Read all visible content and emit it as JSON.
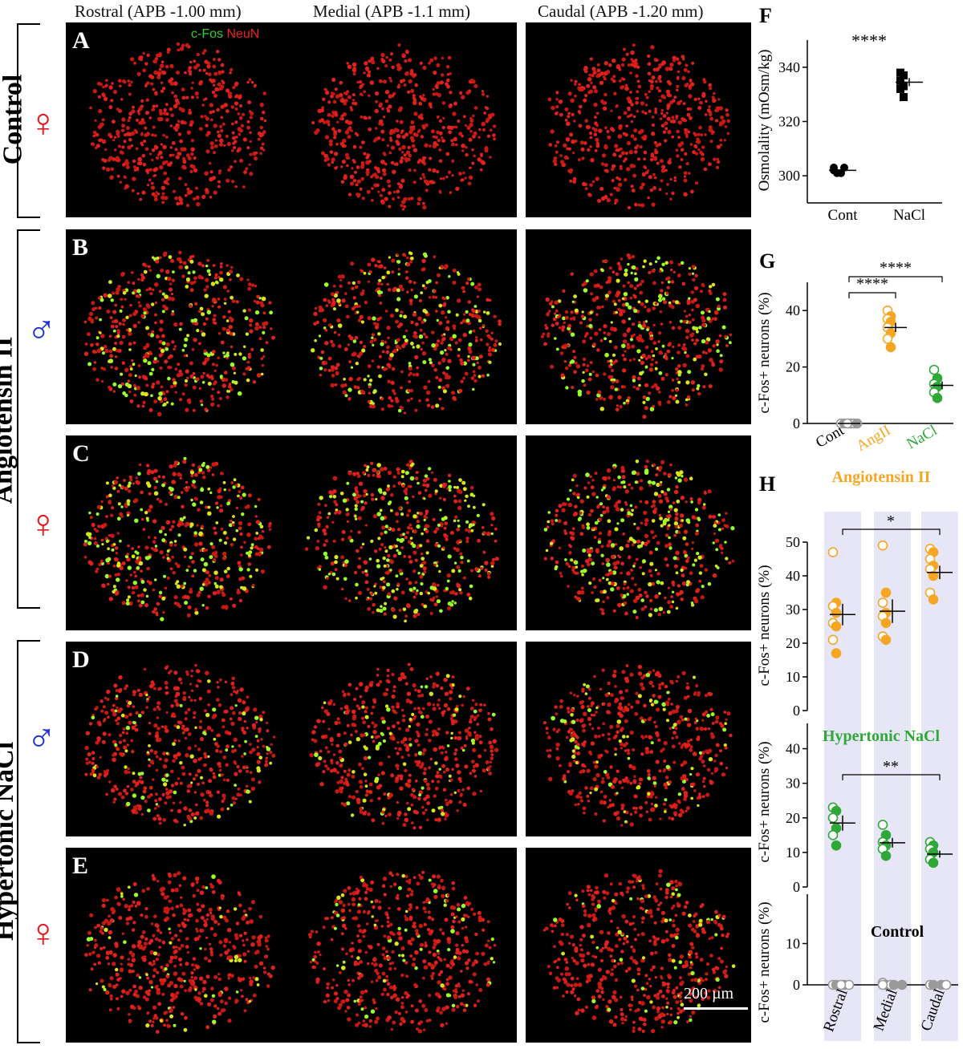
{
  "columns": [
    "Rostral (APB -1.00 mm)",
    "Medial (APB -1.1 mm)",
    "Caudal (APB -1.20 mm)"
  ],
  "stain": {
    "green": "c-Fos",
    "red": "NeuN"
  },
  "rows": [
    {
      "group": "Control",
      "sex": "♀",
      "sex_type": "female",
      "letter": "A",
      "green_fraction": 0.0
    },
    {
      "group": "Angiotensin II",
      "sex": "♂",
      "sex_type": "male",
      "letter": "B",
      "green_fraction": 0.28
    },
    {
      "group": "Angiotensin II",
      "sex": "♀",
      "sex_type": "female",
      "letter": "C",
      "green_fraction": 0.35
    },
    {
      "group": "Hypertonic NaCl",
      "sex": "♂",
      "sex_type": "male",
      "letter": "D",
      "green_fraction": 0.15
    },
    {
      "group": "Hypertonic NaCl",
      "sex": "♀",
      "sex_type": "female",
      "letter": "E",
      "green_fraction": 0.12
    }
  ],
  "group_labels": {
    "control": "Control",
    "angII": "Angiotensin II",
    "nacl": "Hypertonic NaCl"
  },
  "scale_bar": "200 µm",
  "colors": {
    "angII": "#f5a623",
    "nacl": "#2ea836",
    "control": "#9a9a9a",
    "shade": "#e6e6f7",
    "female": "#e8141c",
    "male": "#1a2fd6"
  },
  "chart_data": [
    {
      "id": "F",
      "type": "scatter",
      "ylabel": "Osmolality (mOsm/kg)",
      "ylim": [
        290,
        350
      ],
      "yticks": [
        300,
        320,
        340
      ],
      "categories": [
        "Cont",
        "NaCl"
      ],
      "series": [
        {
          "category": "Cont",
          "marker": "circle",
          "color": "#000000",
          "values": [
            303,
            303,
            302,
            301,
            301
          ],
          "mean": 302,
          "sem": 0.6
        },
        {
          "category": "NaCl",
          "marker": "square",
          "color": "#000000",
          "values": [
            338,
            337,
            335,
            333,
            332,
            329
          ],
          "mean": 334.5,
          "sem": 1.5
        }
      ],
      "significance": [
        {
          "from": "Cont",
          "to": "NaCl",
          "label": "****",
          "bracket": false
        }
      ]
    },
    {
      "id": "G",
      "type": "scatter",
      "ylabel": "c-Fos+ neurons (%)",
      "ylim": [
        0,
        50
      ],
      "yticks": [
        0,
        20,
        40
      ],
      "categories": [
        "Cont",
        "AngII",
        "NaCl"
      ],
      "category_colors": [
        "#000000",
        "#f5a623",
        "#2ea836"
      ],
      "series": [
        {
          "category": "Cont",
          "color": "#9a9a9a",
          "values": [
            0,
            0,
            0,
            0,
            0,
            0
          ],
          "mean": 0,
          "sem": 0
        },
        {
          "category": "AngII",
          "color": "#f5a623",
          "values": [
            40,
            38,
            37,
            36,
            34,
            32,
            30,
            27
          ],
          "mean": 34,
          "sem": 1.6
        },
        {
          "category": "NaCl",
          "color": "#2ea836",
          "values": [
            19,
            16,
            14,
            13,
            11,
            9
          ],
          "mean": 13.5,
          "sem": 1.4
        }
      ],
      "significance": [
        {
          "from": "Cont",
          "to": "AngII",
          "label": "****"
        },
        {
          "from": "Cont",
          "to": "NaCl",
          "label": "****"
        }
      ]
    },
    {
      "id": "H",
      "type": "scatter",
      "ylabel": "c-Fos+ neurons (%)",
      "categories": [
        "Rostral",
        "Medial",
        "Caudal"
      ],
      "subpanels": [
        {
          "title": "Angiotensin II",
          "color": "#f5a623",
          "ylim": [
            0,
            50
          ],
          "yticks": [
            0,
            10,
            20,
            30,
            40,
            50
          ],
          "series": [
            {
              "category": "Rostral",
              "values": [
                47,
                32,
                31,
                29,
                26,
                25,
                21,
                17
              ],
              "mean": 28.5,
              "sem": 3.2
            },
            {
              "category": "Medial",
              "values": [
                49,
                35,
                32,
                29,
                28,
                26,
                22,
                21
              ],
              "mean": 29.5,
              "sem": 3.5
            },
            {
              "category": "Caudal",
              "values": [
                48,
                47,
                45,
                43,
                42,
                40,
                35,
                33
              ],
              "mean": 41,
              "sem": 2.0
            }
          ],
          "significance": [
            {
              "from": "Rostral",
              "to": "Caudal",
              "label": "*"
            }
          ]
        },
        {
          "title": "Hypertonic NaCl",
          "color": "#2ea836",
          "ylim": [
            0,
            45
          ],
          "yticks": [
            0,
            10,
            20,
            30,
            40
          ],
          "series": [
            {
              "category": "Rostral",
              "values": [
                23,
                22,
                20,
                17,
                15,
                12
              ],
              "mean": 18.5,
              "sem": 2.2
            },
            {
              "category": "Medial",
              "values": [
                18,
                15,
                13,
                12,
                11,
                9
              ],
              "mean": 12.8,
              "sem": 1.4
            },
            {
              "category": "Caudal",
              "values": [
                13,
                12,
                11,
                10,
                8,
                7
              ],
              "mean": 9.5,
              "sem": 1.0
            }
          ],
          "significance": [
            {
              "from": "Rostral",
              "to": "Caudal",
              "label": "**"
            }
          ]
        },
        {
          "title": "Control",
          "color": "#9a9a9a",
          "ylim": [
            0,
            20
          ],
          "yticks": [
            0,
            10
          ],
          "series": [
            {
              "category": "Rostral",
              "values": [
                0,
                0,
                0,
                0,
                0
              ],
              "mean": 0,
              "sem": 0
            },
            {
              "category": "Medial",
              "values": [
                0.5,
                0,
                0,
                0,
                0,
                0
              ],
              "mean": 0.1,
              "sem": 0
            },
            {
              "category": "Caudal",
              "values": [
                0,
                0,
                0,
                0
              ],
              "mean": 0,
              "sem": 0
            }
          ],
          "significance": []
        }
      ]
    }
  ]
}
